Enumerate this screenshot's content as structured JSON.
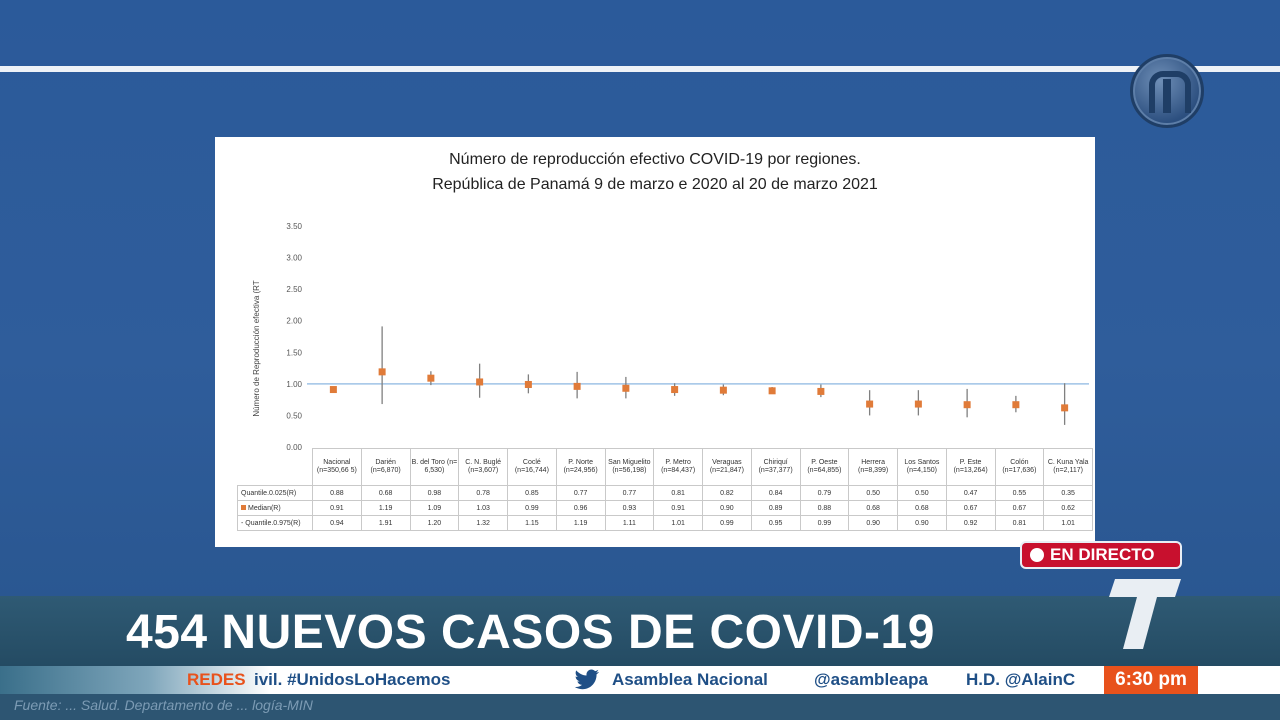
{
  "chart_data": {
    "type": "scatter",
    "title_line1": "Número de reproducción efectivo COVID-19 por regiones.",
    "title_line2": "República de Panamá  9 de marzo e 2020 al 20 de marzo 2021",
    "ylabel": "Número de Reproducción efectiva (RT",
    "ylim": [
      0,
      3.5
    ],
    "yticks": [
      "0.00",
      "0.50",
      "1.00",
      "1.50",
      "2.00",
      "2.50",
      "3.00",
      "3.50"
    ],
    "reference_line": 1.0,
    "categories": [
      "Nacional (n=350,66 5)",
      "Darién (n=6,870)",
      "B. del Toro (n= 6,530)",
      "C. N. Buglé (n=3,607)",
      "Coclé (n=16,744)",
      "P. Norte (n=24,956)",
      "San Miguelito (n=56,198)",
      "P. Metro (n=84,437)",
      "Veraguas (n=21,847)",
      "Chiriquí (n=37,377)",
      "P. Oeste (n=64,855)",
      "Herrera (n=8,399)",
      "Los Santos (n=4,150)",
      "P. Este (n=13,264)",
      "Colón (n=17,636)",
      "C. Kuna Yala (n=2,117)"
    ],
    "series": [
      {
        "name": "Quantile.0.025(R)",
        "values": [
          0.88,
          0.68,
          0.98,
          0.78,
          0.85,
          0.77,
          0.77,
          0.81,
          0.82,
          0.84,
          0.79,
          0.5,
          0.5,
          0.47,
          0.55,
          0.35
        ]
      },
      {
        "name": "Median(R)",
        "values": [
          0.91,
          1.19,
          1.09,
          1.03,
          0.99,
          0.96,
          0.93,
          0.91,
          0.9,
          0.89,
          0.88,
          0.68,
          0.68,
          0.67,
          0.67,
          0.62
        ]
      },
      {
        "name": "Quantile.0.975(R)",
        "values": [
          0.94,
          1.91,
          1.2,
          1.32,
          1.15,
          1.19,
          1.11,
          1.01,
          0.99,
          0.95,
          0.99,
          0.9,
          0.9,
          0.92,
          0.81,
          1.01
        ]
      }
    ],
    "row_labels": [
      "Quantile.0.025(R)",
      "Median(R)",
      "- Quantile.0.975(R)"
    ],
    "table_values": [
      [
        "0.88",
        "0.68",
        "0.98",
        "0.78",
        "0.85",
        "0.77",
        "0.77",
        "0.81",
        "0.82",
        "0.84",
        "0.79",
        "0.50",
        "0.50",
        "0.47",
        "0.55",
        "0.35"
      ],
      [
        "0.91",
        "1.19",
        "1.09",
        "1.03",
        "0.99",
        "0.96",
        "0.93",
        "0.91",
        "0.90",
        "0.89",
        "0.88",
        "0.68",
        "0.68",
        "0.67",
        "0.67",
        "0.62"
      ],
      [
        "0.94",
        "1.91",
        "1.20",
        "1.32",
        "1.15",
        "1.19",
        "1.11",
        "1.01",
        "0.99",
        "0.95",
        "0.99",
        "0.90",
        "0.90",
        "0.92",
        "0.81",
        "1.01"
      ]
    ],
    "colors": {
      "median": "#e07b39",
      "interval": "#808080",
      "reference_line": "#9fc3e6"
    }
  },
  "broadcast": {
    "live_label": "EN DIRECTO",
    "headline": "454 NUEVOS CASOS DE COVID-19",
    "ticker_label": "REDES",
    "ticker_segments": [
      "ivil. #UnidosLoHacemos",
      "Asamblea Nacional",
      "@asambleapa",
      "H.D. @AlainC"
    ],
    "time": "6:30 pm",
    "source_text": "Fuente: ... Salud. Departamento de ... logía-MIN",
    "colors": {
      "live": "#c8102e",
      "accent": "#e8521c",
      "ticker_text": "#1f4f86"
    }
  },
  "icons": [
    "channel-logo-icon",
    "twitter-icon",
    "t-logo-icon",
    "live-dot-icon"
  ]
}
